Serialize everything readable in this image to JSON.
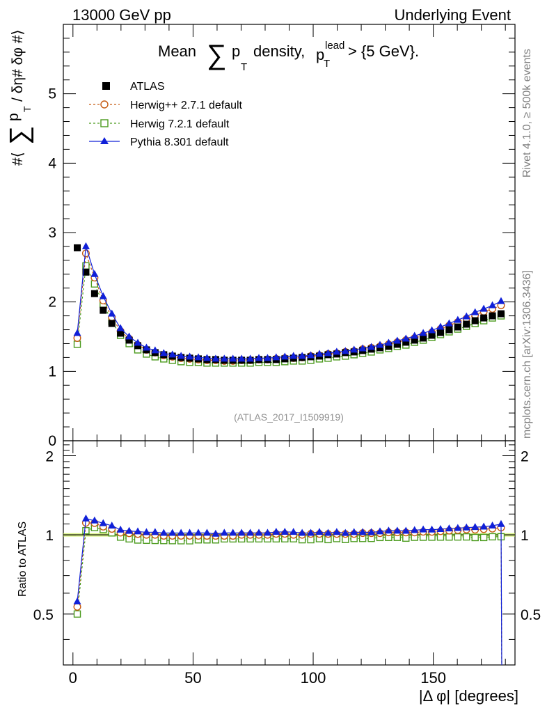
{
  "header": {
    "left": "13000 GeV pp",
    "right": "Underlying Event"
  },
  "side_labels": {
    "rivet": "Rivet 4.1.0, ≥ 500k events",
    "mcplots": "mcplots.cern.ch [arXiv:1306.3436]"
  },
  "analysis_ref": "(ATLAS_2017_I1509919)",
  "chart_data": [
    {
      "type": "scatter",
      "panel": "main",
      "title": "Mean ∑ p_T density, p_T^lead > {5 GeV}.",
      "title_parts": {
        "mean": "Mean",
        "sum": "∑",
        "p": "p",
        "T": "T",
        "density": "density,",
        "lead": "lead",
        "cut": "> {5 GeV}."
      },
      "ylabel": "#⟨ ∑ p_T / δη# δφ #⟩",
      "ylabel_parts": {
        "prefix": "#⟨",
        "sum": "∑",
        "p": "p",
        "T": "T",
        "rest": "/ δη# δφ #⟩"
      },
      "xlabel": "",
      "xlim": [
        -4,
        184
      ],
      "ylim": [
        0,
        6
      ],
      "yticks": [
        0,
        1,
        2,
        3,
        4,
        5
      ],
      "x": [
        1.8,
        5.4,
        9.0,
        12.6,
        16.2,
        19.8,
        23.4,
        27.0,
        30.6,
        34.2,
        37.8,
        41.4,
        45.0,
        48.6,
        52.2,
        55.8,
        59.4,
        63.0,
        66.6,
        70.2,
        73.8,
        77.4,
        81.0,
        84.6,
        88.2,
        91.8,
        95.4,
        99.0,
        102.6,
        106.2,
        109.8,
        113.4,
        117.0,
        120.6,
        124.2,
        127.8,
        131.4,
        135.0,
        138.6,
        142.2,
        145.8,
        149.4,
        153.0,
        156.6,
        160.2,
        163.8,
        167.4,
        171.0,
        174.6,
        178.2
      ],
      "series": [
        {
          "name": "ATLAS",
          "color": "#000000",
          "marker": "filled-square",
          "values": [
            2.78,
            2.43,
            2.12,
            1.88,
            1.69,
            1.55,
            1.45,
            1.37,
            1.31,
            1.27,
            1.24,
            1.22,
            1.2,
            1.19,
            1.18,
            1.17,
            1.17,
            1.16,
            1.16,
            1.16,
            1.16,
            1.17,
            1.17,
            1.17,
            1.18,
            1.19,
            1.2,
            1.21,
            1.22,
            1.24,
            1.25,
            1.27,
            1.28,
            1.3,
            1.32,
            1.34,
            1.36,
            1.39,
            1.42,
            1.45,
            1.48,
            1.52,
            1.56,
            1.6,
            1.64,
            1.68,
            1.73,
            1.77,
            1.8,
            1.83
          ]
        },
        {
          "name": "Herwig++ 2.7.1 default",
          "color": "#c55a11",
          "marker": "open-circle",
          "values": [
            1.48,
            2.7,
            2.35,
            2.02,
            1.78,
            1.58,
            1.47,
            1.38,
            1.31,
            1.27,
            1.23,
            1.21,
            1.19,
            1.18,
            1.17,
            1.16,
            1.16,
            1.15,
            1.15,
            1.16,
            1.16,
            1.17,
            1.17,
            1.18,
            1.19,
            1.19,
            1.2,
            1.22,
            1.23,
            1.25,
            1.26,
            1.28,
            1.29,
            1.32,
            1.34,
            1.36,
            1.39,
            1.42,
            1.45,
            1.48,
            1.52,
            1.56,
            1.61,
            1.66,
            1.71,
            1.76,
            1.81,
            1.86,
            1.9,
            1.95
          ]
        },
        {
          "name": "Herwig 7.2.1 default",
          "color": "#4a9a1c",
          "marker": "open-square",
          "values": [
            1.39,
            2.52,
            2.26,
            1.97,
            1.72,
            1.52,
            1.4,
            1.31,
            1.25,
            1.21,
            1.18,
            1.16,
            1.14,
            1.13,
            1.13,
            1.12,
            1.12,
            1.12,
            1.12,
            1.12,
            1.12,
            1.13,
            1.13,
            1.13,
            1.14,
            1.15,
            1.15,
            1.16,
            1.18,
            1.19,
            1.21,
            1.22,
            1.24,
            1.26,
            1.28,
            1.31,
            1.33,
            1.36,
            1.38,
            1.42,
            1.45,
            1.49,
            1.53,
            1.57,
            1.61,
            1.65,
            1.69,
            1.73,
            1.77,
            1.8
          ]
        },
        {
          "name": "Pythia 8.301 default",
          "color": "#1020d8",
          "marker": "filled-triangle",
          "values": [
            1.55,
            2.8,
            2.4,
            2.08,
            1.83,
            1.62,
            1.5,
            1.41,
            1.34,
            1.3,
            1.26,
            1.24,
            1.22,
            1.21,
            1.2,
            1.19,
            1.18,
            1.18,
            1.18,
            1.18,
            1.18,
            1.19,
            1.19,
            1.2,
            1.21,
            1.22,
            1.22,
            1.23,
            1.25,
            1.26,
            1.28,
            1.29,
            1.31,
            1.33,
            1.35,
            1.38,
            1.41,
            1.44,
            1.47,
            1.51,
            1.55,
            1.59,
            1.64,
            1.69,
            1.74,
            1.79,
            1.85,
            1.9,
            1.95,
            2.01
          ]
        }
      ]
    },
    {
      "type": "scatter",
      "panel": "ratio",
      "ylabel": "Ratio to ATLAS",
      "xlabel": "|Δ φ| [degrees]",
      "xlim": [
        -4,
        184
      ],
      "ylim": [
        0.32,
        2.28
      ],
      "yticks": [
        0.5,
        1,
        2
      ],
      "xticks": [
        0,
        50,
        100,
        150
      ],
      "reference_band": {
        "value": 1.0,
        "color": "#ccee55"
      },
      "note": "ratios computed as model / ATLAS for each x bin"
    }
  ]
}
